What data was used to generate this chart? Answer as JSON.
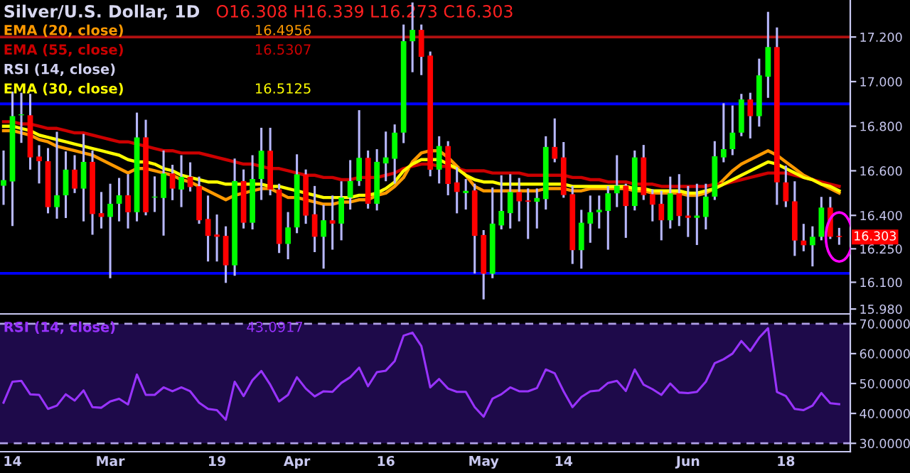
{
  "chart_data": [
    {
      "type": "candlestick",
      "title": "Silver/U.S. Dollar, 1D",
      "ohlc": [
        [
          16.533,
          16.686,
          16.452,
          16.558
        ],
        [
          16.552,
          16.95,
          16.357,
          16.845
        ],
        [
          16.849,
          16.945,
          16.73,
          16.853
        ],
        [
          16.849,
          16.94,
          16.61,
          16.66
        ],
        [
          16.664,
          16.71,
          16.548,
          16.643
        ],
        [
          16.643,
          16.697,
          16.414,
          16.437
        ],
        [
          16.437,
          16.77,
          16.39,
          16.49
        ],
        [
          16.49,
          16.682,
          16.393,
          16.605
        ],
        [
          16.605,
          16.665,
          16.505,
          16.52
        ],
        [
          16.52,
          16.76,
          16.378,
          16.64
        ],
        [
          16.64,
          16.686,
          16.318,
          16.406
        ],
        [
          16.41,
          16.5,
          16.346,
          16.393
        ],
        [
          16.393,
          16.537,
          16.123,
          16.452
        ],
        [
          16.452,
          16.563,
          16.378,
          16.49
        ],
        [
          16.49,
          16.58,
          16.346,
          16.414
        ],
        [
          16.414,
          16.856,
          16.378,
          16.75
        ],
        [
          16.75,
          16.824,
          16.405,
          16.414
        ],
        [
          16.48,
          16.57,
          16.42,
          16.484
        ],
        [
          16.478,
          16.686,
          16.314,
          16.588
        ],
        [
          16.588,
          16.622,
          16.473,
          16.52
        ],
        [
          16.516,
          16.665,
          16.442,
          16.573
        ],
        [
          16.573,
          16.633,
          16.512,
          16.527
        ],
        [
          16.531,
          16.569,
          16.367,
          16.378
        ],
        [
          16.384,
          16.484,
          16.198,
          16.308
        ],
        [
          16.314,
          16.399,
          16.198,
          16.304
        ],
        [
          16.308,
          16.346,
          16.102,
          16.176
        ],
        [
          16.176,
          16.65,
          16.134,
          16.554
        ],
        [
          16.554,
          16.601,
          16.346,
          16.367
        ],
        [
          16.367,
          16.665,
          16.342,
          16.563
        ],
        [
          16.563,
          16.788,
          16.474,
          16.69
        ],
        [
          16.69,
          16.788,
          16.495,
          16.516
        ],
        [
          16.516,
          16.537,
          16.236,
          16.272
        ],
        [
          16.272,
          16.41,
          16.208,
          16.346
        ],
        [
          16.346,
          16.669,
          16.325,
          16.584
        ],
        [
          16.584,
          16.601,
          16.367,
          16.399
        ],
        [
          16.405,
          16.527,
          16.24,
          16.304
        ],
        [
          16.304,
          16.442,
          16.166,
          16.378
        ],
        [
          16.378,
          16.484,
          16.251,
          16.363
        ],
        [
          16.363,
          16.548,
          16.293,
          16.48
        ],
        [
          16.48,
          16.643,
          16.431,
          16.554
        ],
        [
          16.554,
          16.867,
          16.537,
          16.658
        ],
        [
          16.658,
          16.686,
          16.435,
          16.452
        ],
        [
          16.452,
          16.692,
          16.427,
          16.64
        ],
        [
          16.633,
          16.771,
          16.558,
          16.66
        ],
        [
          16.654,
          16.803,
          16.548,
          16.771
        ],
        [
          16.771,
          17.251,
          16.729,
          17.181
        ],
        [
          17.181,
          17.35,
          17.047,
          17.232
        ],
        [
          17.232,
          17.251,
          17.034,
          17.111
        ],
        [
          17.117,
          17.13,
          16.58,
          16.605
        ],
        [
          16.605,
          16.75,
          16.548,
          16.711
        ],
        [
          16.711,
          16.728,
          16.495,
          16.541
        ],
        [
          16.548,
          16.611,
          16.414,
          16.505
        ],
        [
          16.5,
          16.558,
          16.431,
          16.51
        ],
        [
          16.512,
          16.537,
          16.144,
          16.308
        ],
        [
          16.312,
          16.329,
          16.028,
          16.138
        ],
        [
          16.138,
          16.52,
          16.123,
          16.363
        ],
        [
          16.355,
          16.575,
          16.342,
          16.42
        ],
        [
          16.41,
          16.58,
          16.346,
          16.505
        ],
        [
          16.505,
          16.563,
          16.378,
          16.463
        ],
        [
          16.467,
          16.516,
          16.299,
          16.461
        ],
        [
          16.461,
          16.516,
          16.346,
          16.478
        ],
        [
          16.473,
          16.75,
          16.431,
          16.707
        ],
        [
          16.707,
          16.83,
          16.643,
          16.654
        ],
        [
          16.66,
          16.724,
          16.484,
          16.491
        ],
        [
          16.495,
          16.527,
          16.187,
          16.244
        ],
        [
          16.244,
          16.42,
          16.166,
          16.367
        ],
        [
          16.363,
          16.484,
          16.282,
          16.414
        ],
        [
          16.414,
          16.484,
          16.346,
          16.425
        ],
        [
          16.42,
          16.527,
          16.251,
          16.499
        ],
        [
          16.499,
          16.665,
          16.442,
          16.533
        ],
        [
          16.533,
          16.537,
          16.304,
          16.442
        ],
        [
          16.442,
          16.686,
          16.427,
          16.66
        ],
        [
          16.66,
          16.711,
          16.474,
          16.491
        ],
        [
          16.495,
          16.512,
          16.378,
          16.448
        ],
        [
          16.452,
          16.505,
          16.293,
          16.378
        ],
        [
          16.378,
          16.569,
          16.346,
          16.499
        ],
        [
          16.499,
          16.58,
          16.357,
          16.397
        ],
        [
          16.399,
          16.527,
          16.308,
          16.389
        ],
        [
          16.389,
          16.537,
          16.272,
          16.399
        ],
        [
          16.393,
          16.537,
          16.342,
          16.484
        ],
        [
          16.484,
          16.728,
          16.474,
          16.665
        ],
        [
          16.66,
          16.898,
          16.643,
          16.697
        ],
        [
          16.697,
          16.888,
          16.675,
          16.771
        ],
        [
          16.771,
          16.94,
          16.76,
          16.92
        ],
        [
          16.92,
          16.945,
          16.75,
          16.845
        ],
        [
          16.845,
          17.098,
          16.803,
          17.028
        ],
        [
          17.022,
          17.308,
          16.932,
          17.155
        ],
        [
          17.155,
          17.238,
          16.452,
          16.548
        ],
        [
          16.548,
          16.618,
          16.442,
          16.463
        ],
        [
          16.463,
          16.548,
          16.223,
          16.287
        ],
        [
          16.287,
          16.357,
          16.244,
          16.266
        ],
        [
          16.266,
          16.346,
          16.176,
          16.304
        ],
        [
          16.304,
          16.478,
          16.293,
          16.435
        ],
        [
          16.435,
          16.478,
          16.299,
          16.304
        ],
        [
          16.308,
          16.339,
          16.273,
          16.303
        ]
      ],
      "series": [
        {
          "name": "EMA (20, close)",
          "type": "line",
          "color": "#ff9900",
          "values": [
            16.78,
            16.78,
            16.77,
            16.76,
            16.74,
            16.73,
            16.71,
            16.7,
            16.69,
            16.68,
            16.67,
            16.65,
            16.63,
            16.61,
            16.59,
            16.61,
            16.61,
            16.6,
            16.59,
            16.58,
            16.56,
            16.55,
            16.53,
            16.51,
            16.49,
            16.47,
            16.49,
            16.5,
            16.51,
            16.52,
            16.52,
            16.5,
            16.48,
            16.48,
            16.47,
            16.46,
            16.45,
            16.45,
            16.46,
            16.46,
            16.47,
            16.47,
            16.49,
            16.5,
            16.53,
            16.57,
            16.64,
            16.68,
            16.69,
            16.69,
            16.66,
            16.62,
            16.58,
            16.53,
            16.51,
            16.51,
            16.51,
            16.51,
            16.51,
            16.51,
            16.51,
            16.52,
            16.52,
            16.52,
            16.51,
            16.51,
            16.52,
            16.52,
            16.52,
            16.52,
            16.52,
            16.51,
            16.51,
            16.5,
            16.5,
            16.5,
            16.5,
            16.49,
            16.49,
            16.5,
            16.52,
            16.56,
            16.6,
            16.63,
            16.65,
            16.67,
            16.69,
            16.67,
            16.64,
            16.61,
            16.58,
            16.56,
            16.54,
            16.52,
            16.5
          ]
        },
        {
          "name": "EMA (55, close)",
          "type": "line",
          "color": "#cc0000",
          "values": [
            16.82,
            16.82,
            16.81,
            16.81,
            16.8,
            16.79,
            16.79,
            16.78,
            16.77,
            16.77,
            16.76,
            16.75,
            16.74,
            16.73,
            16.73,
            16.72,
            16.71,
            16.7,
            16.69,
            16.69,
            16.68,
            16.68,
            16.68,
            16.67,
            16.66,
            16.65,
            16.64,
            16.63,
            16.63,
            16.62,
            16.61,
            16.61,
            16.6,
            16.59,
            16.58,
            16.58,
            16.57,
            16.57,
            16.56,
            16.56,
            16.57,
            16.57,
            16.57,
            16.58,
            16.59,
            16.61,
            16.62,
            16.63,
            16.63,
            16.62,
            16.62,
            16.61,
            16.6,
            16.6,
            16.6,
            16.59,
            16.59,
            16.59,
            16.59,
            16.58,
            16.58,
            16.58,
            16.58,
            16.58,
            16.57,
            16.57,
            16.56,
            16.56,
            16.55,
            16.55,
            16.55,
            16.54,
            16.54,
            16.54,
            16.53,
            16.53,
            16.53,
            16.53,
            16.53,
            16.53,
            16.54,
            16.54,
            16.55,
            16.56,
            16.57,
            16.58,
            16.59,
            16.59,
            16.59,
            16.58,
            16.57,
            16.56,
            16.55,
            16.54,
            16.53
          ]
        },
        {
          "name": "EMA (30, close)",
          "type": "line",
          "color": "#ffff00",
          "values": [
            16.8,
            16.8,
            16.79,
            16.78,
            16.76,
            16.75,
            16.74,
            16.73,
            16.72,
            16.71,
            16.7,
            16.69,
            16.68,
            16.67,
            16.65,
            16.64,
            16.64,
            16.63,
            16.61,
            16.6,
            16.58,
            16.57,
            16.56,
            16.55,
            16.55,
            16.54,
            16.54,
            16.54,
            16.54,
            16.54,
            16.53,
            16.53,
            16.52,
            16.51,
            16.5,
            16.49,
            16.48,
            16.48,
            16.48,
            16.48,
            16.49,
            16.49,
            16.5,
            16.52,
            16.55,
            16.6,
            16.63,
            16.65,
            16.65,
            16.65,
            16.63,
            16.61,
            16.58,
            16.56,
            16.55,
            16.55,
            16.54,
            16.54,
            16.54,
            16.54,
            16.54,
            16.54,
            16.54,
            16.54,
            16.53,
            16.53,
            16.53,
            16.53,
            16.53,
            16.53,
            16.53,
            16.52,
            16.52,
            16.51,
            16.51,
            16.51,
            16.51,
            16.5,
            16.5,
            16.51,
            16.52,
            16.54,
            16.56,
            16.58,
            16.6,
            16.62,
            16.64,
            16.63,
            16.61,
            16.59,
            16.57,
            16.56,
            16.54,
            16.53,
            16.51
          ]
        }
      ],
      "ylim": [
        15.958,
        17.366
      ],
      "yticks": [
        {
          "value": 15.98,
          "label": "15.980"
        },
        {
          "value": 16.1,
          "label": "16.100"
        },
        {
          "value": 16.25,
          "label": "16.250"
        },
        {
          "value": 16.4,
          "label": "16.400"
        },
        {
          "value": 16.6,
          "label": "16.600"
        },
        {
          "value": 16.8,
          "label": "16.800"
        },
        {
          "value": 17.0,
          "label": "17.000"
        },
        {
          "value": 17.2,
          "label": "17.200"
        }
      ],
      "ref_lines": [
        {
          "axis": "y",
          "value": 17.2,
          "color": "#b01010"
        },
        {
          "axis": "y",
          "value": 16.9,
          "color": "#0000ff"
        },
        {
          "axis": "y",
          "value": 16.14,
          "color": "#0000ff"
        }
      ],
      "annotations": [
        "O16.308 H16.339 L16.273 C16.303",
        "16.4956",
        "16.5307",
        "RSI (14, close)",
        "16.5125",
        {
          "text": "16.303",
          "y": 16.303
        }
      ],
      "tick_labels": "y"
    },
    {
      "type": "line",
      "categories": [
        null,
        "14",
        null,
        null,
        null,
        null,
        null,
        null,
        null,
        null,
        null,
        null,
        "Mar",
        null,
        null,
        null,
        null,
        null,
        null,
        null,
        null,
        null,
        null,
        null,
        "19",
        null,
        null,
        null,
        null,
        null,
        null,
        null,
        null,
        "Apr",
        null,
        null,
        null,
        null,
        null,
        null,
        null,
        null,
        null,
        "16",
        null,
        null,
        null,
        null,
        null,
        null,
        null,
        null,
        null,
        null,
        "May",
        null,
        null,
        null,
        null,
        null,
        null,
        null,
        null,
        "14",
        null,
        null,
        null,
        null,
        null,
        null,
        null,
        null,
        null,
        null,
        null,
        null,
        null,
        "Jun",
        null,
        null,
        null,
        null,
        null,
        null,
        null,
        null,
        null,
        null,
        "18",
        null,
        null,
        null,
        null,
        null,
        null
      ],
      "series": [
        {
          "name": "RSI (14, close)",
          "color": "#9933ff",
          "values": [
            43.6,
            50.6,
            50.9,
            46.4,
            46.2,
            41.5,
            42.6,
            46.4,
            44.3,
            47.7,
            42.1,
            41.9,
            44.0,
            44.9,
            43.0,
            53.0,
            46.2,
            46.2,
            48.7,
            47.4,
            48.7,
            47.4,
            43.6,
            41.5,
            41.1,
            37.9,
            50.6,
            45.8,
            51.1,
            54.2,
            49.6,
            44.0,
            46.2,
            52.1,
            48.3,
            45.7,
            47.4,
            47.2,
            50.2,
            52.1,
            55.3,
            49.1,
            53.8,
            54.3,
            57.5,
            66.0,
            67.0,
            62.5,
            48.7,
            51.5,
            48.3,
            47.2,
            47.2,
            42.1,
            38.9,
            44.9,
            46.4,
            48.7,
            47.4,
            47.4,
            48.5,
            54.7,
            53.4,
            47.4,
            42.1,
            45.5,
            47.4,
            47.7,
            50.2,
            50.9,
            47.5,
            54.7,
            49.6,
            48.1,
            46.2,
            50.0,
            47.0,
            46.8,
            47.2,
            50.6,
            56.8,
            58.1,
            60.0,
            64.2,
            60.9,
            65.3,
            68.5,
            47.2,
            45.8,
            41.5,
            41.1,
            42.6,
            46.8,
            43.4,
            43.1
          ]
        }
      ],
      "ylim": [
        27.2,
        72.8
      ],
      "yticks": [
        {
          "value": 30,
          "label": "30.0000"
        },
        {
          "value": 40,
          "label": "40.0000"
        },
        {
          "value": 50,
          "label": "50.0000"
        },
        {
          "value": 60,
          "label": "60.0000"
        },
        {
          "value": 70,
          "label": "70.0000"
        }
      ],
      "ref_lines": [
        {
          "axis": "y",
          "value": 70,
          "color": "#b0a0e8",
          "line_style": "dashed"
        },
        {
          "axis": "y",
          "value": 30,
          "color": "#b0a0e8",
          "line_style": "dashed"
        }
      ],
      "bands": [
        {
          "axis": "y",
          "from": 30,
          "to": 70,
          "color": "#1e0a4a"
        }
      ],
      "annotations": [
        "43.0917"
      ]
    }
  ]
}
